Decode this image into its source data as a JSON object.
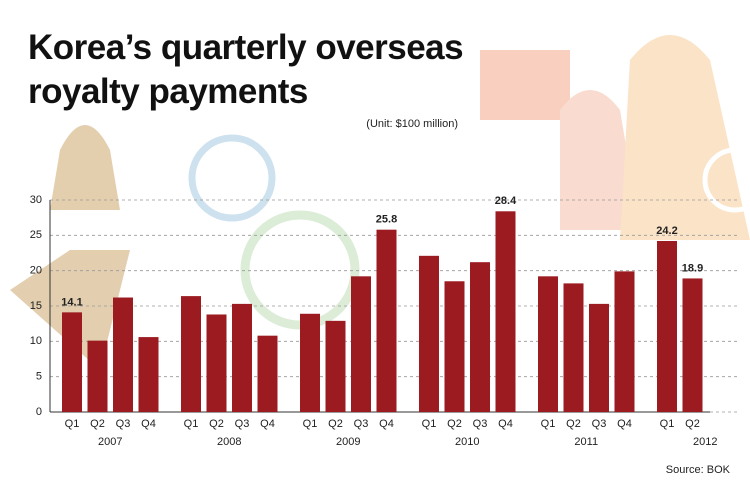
{
  "chart_data": {
    "type": "bar",
    "title": "Korea’s quarterly overseas royalty payments",
    "subtitle": "(Unit: $100 million)",
    "source": "Source: BOK",
    "color": "#9b1b20",
    "ylim": [
      0,
      30
    ],
    "yticks": [
      0,
      5,
      10,
      15,
      20,
      25,
      30
    ],
    "grid": true,
    "groups": [
      {
        "name": "2007",
        "categories": [
          "Q1",
          "Q2",
          "Q3",
          "Q4"
        ],
        "values": [
          14.1,
          10.1,
          16.2,
          10.6
        ],
        "value_labels": [
          "14.1",
          null,
          null,
          null
        ]
      },
      {
        "name": "2008",
        "categories": [
          "Q1",
          "Q2",
          "Q3",
          "Q4"
        ],
        "values": [
          16.4,
          13.8,
          15.3,
          10.8
        ],
        "value_labels": [
          null,
          null,
          null,
          null
        ]
      },
      {
        "name": "2009",
        "categories": [
          "Q1",
          "Q2",
          "Q3",
          "Q4"
        ],
        "values": [
          13.9,
          12.9,
          19.2,
          25.8
        ],
        "value_labels": [
          null,
          null,
          null,
          "25.8"
        ]
      },
      {
        "name": "2010",
        "categories": [
          "Q1",
          "Q2",
          "Q3",
          "Q4"
        ],
        "values": [
          22.1,
          18.5,
          21.2,
          28.4
        ],
        "value_labels": [
          null,
          null,
          null,
          "28.4"
        ]
      },
      {
        "name": "2011",
        "categories": [
          "Q1",
          "Q2",
          "Q3",
          "Q4"
        ],
        "values": [
          19.2,
          18.2,
          15.3,
          19.9
        ],
        "value_labels": [
          null,
          null,
          null,
          null
        ]
      },
      {
        "name": "2012",
        "categories": [
          "Q1",
          "Q2"
        ],
        "values": [
          24.2,
          18.9
        ],
        "value_labels": [
          "24.2",
          "18.9"
        ]
      }
    ]
  }
}
